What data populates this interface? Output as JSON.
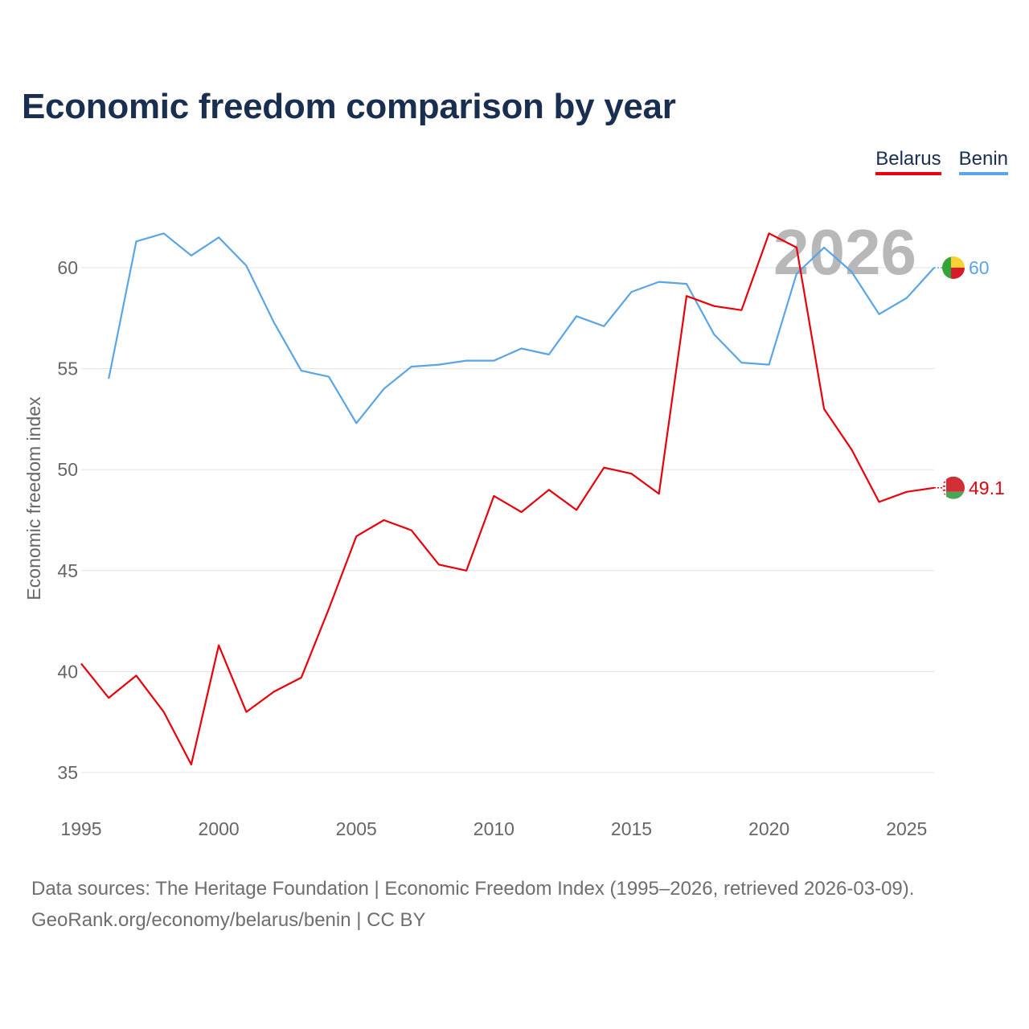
{
  "title": "Economic freedom comparison by year",
  "legend": {
    "belarus": "Belarus",
    "benin": "Benin"
  },
  "watermark_year": "2026",
  "footer": {
    "line1": "Data sources: The Heritage Foundation | Economic Freedom Index (1995–2026, retrieved 2026-03-09).",
    "line2": "GeoRank.org/economy/belarus/benin | CC BY"
  },
  "chart_data": {
    "type": "line",
    "title": "Economic freedom comparison by year",
    "xlabel": "",
    "ylabel": "Economic freedom index",
    "xlim": [
      1995,
      2026
    ],
    "ylim": [
      33,
      63
    ],
    "x_ticks": [
      1995,
      2000,
      2005,
      2010,
      2015,
      2020,
      2025
    ],
    "y_ticks": [
      35,
      40,
      45,
      50,
      55,
      60
    ],
    "grid": true,
    "legend_position": "top-right",
    "series": [
      {
        "name": "Belarus",
        "color": "#e8000b",
        "end_label": "49.1",
        "x": [
          1995,
          1996,
          1997,
          1998,
          1999,
          2000,
          2001,
          2002,
          2003,
          2004,
          2005,
          2006,
          2007,
          2008,
          2009,
          2010,
          2011,
          2012,
          2013,
          2014,
          2015,
          2016,
          2017,
          2018,
          2019,
          2020,
          2021,
          2022,
          2023,
          2024,
          2025,
          2026
        ],
        "values": [
          40.4,
          38.7,
          39.8,
          38.0,
          35.4,
          41.3,
          38.0,
          39.0,
          39.7,
          43.1,
          46.7,
          47.5,
          47.0,
          45.3,
          45.0,
          48.7,
          47.9,
          49.0,
          48.0,
          50.1,
          49.8,
          48.8,
          58.6,
          58.1,
          57.9,
          61.7,
          61.0,
          53.0,
          51.0,
          48.4,
          48.9,
          49.1
        ]
      },
      {
        "name": "Benin",
        "color": "#5aa5e6",
        "end_label": "60",
        "x": [
          1996,
          1997,
          1998,
          1999,
          2000,
          2001,
          2002,
          2003,
          2004,
          2005,
          2006,
          2007,
          2008,
          2009,
          2010,
          2011,
          2012,
          2013,
          2014,
          2015,
          2016,
          2017,
          2018,
          2019,
          2020,
          2021,
          2022,
          2023,
          2024,
          2025,
          2026
        ],
        "values": [
          54.5,
          61.3,
          61.7,
          60.6,
          61.5,
          60.1,
          57.3,
          54.9,
          54.6,
          52.3,
          54.0,
          55.1,
          55.2,
          55.4,
          55.4,
          56.0,
          55.7,
          57.6,
          57.1,
          58.8,
          59.3,
          59.2,
          56.7,
          55.3,
          55.2,
          59.7,
          61.0,
          59.8,
          57.7,
          58.5,
          60.0
        ]
      }
    ]
  }
}
